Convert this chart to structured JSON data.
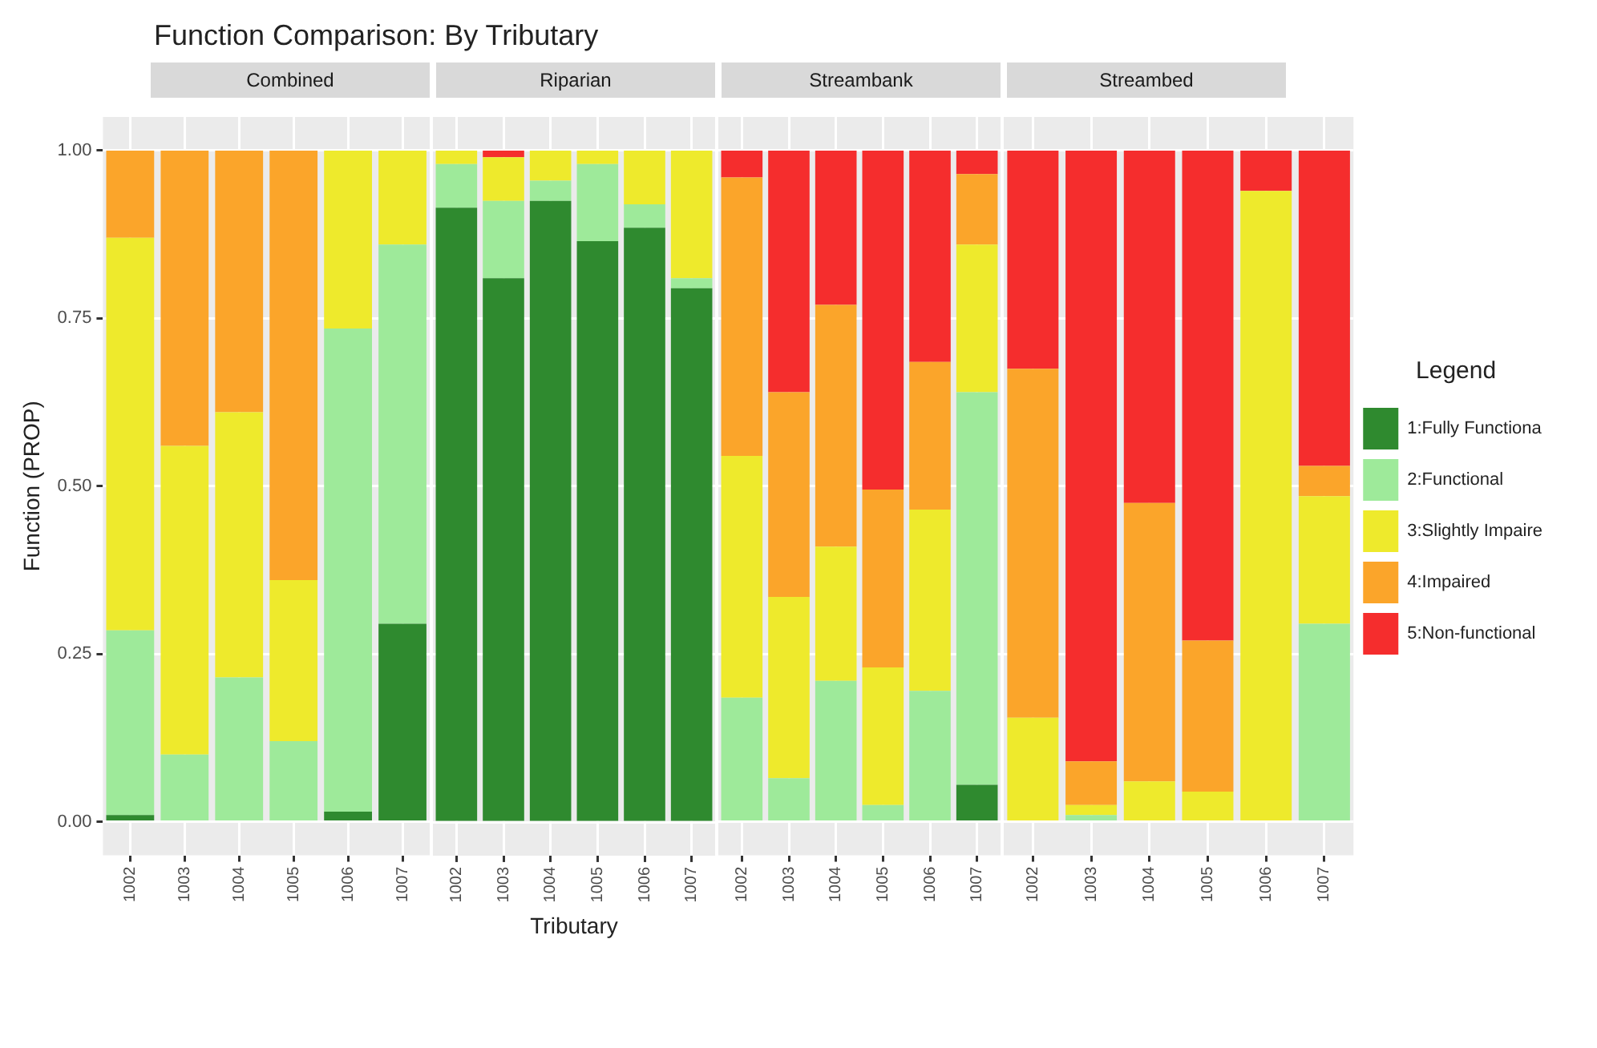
{
  "chart_data": [
    {
      "type": "bar",
      "title": "Function Comparison: By Tributary",
      "subtitle": "Combined",
      "ylabel": "Function (PROP)",
      "grid": true,
      "stacked": true,
      "ylim": [
        -0.05,
        1.05
      ],
      "yticks": [
        {
          "value": 0,
          "label": "0.00"
        },
        {
          "value": 0.25,
          "label": "0.25"
        },
        {
          "value": 0.5,
          "label": "0.50"
        },
        {
          "value": 0.75,
          "label": "0.75"
        },
        {
          "value": 1,
          "label": "1.00"
        }
      ],
      "categories": [
        "1002",
        "1003",
        "1004",
        "1005",
        "1006",
        "1007"
      ],
      "series": [
        {
          "color": "#2f8a2f",
          "values": [
            0.01,
            0,
            0,
            0,
            0.015,
            0.295
          ]
        },
        {
          "color": "#9eea9a",
          "values": [
            0.275,
            0.1,
            0.215,
            0.12,
            0.72,
            0.565
          ]
        },
        {
          "color": "#eeea2c",
          "values": [
            0.585,
            0.46,
            0.395,
            0.24,
            0.265,
            0.14
          ]
        },
        {
          "color": "#fba52a",
          "values": [
            0.13,
            0.44,
            0.39,
            0.64,
            0,
            0
          ]
        },
        {
          "color": "#f52d2d",
          "values": [
            0,
            0,
            0,
            0,
            0,
            0
          ]
        }
      ]
    },
    {
      "type": "bar",
      "subtitle": "Riparian",
      "xlabel": "Tributary",
      "grid": true,
      "stacked": true,
      "tick_labels": "x",
      "ylim": [
        -0.05,
        1.05
      ],
      "yticks": [
        {
          "value": 0,
          "label": null
        },
        {
          "value": 0.25,
          "label": null
        },
        {
          "value": 0.5,
          "label": null
        },
        {
          "value": 0.75,
          "label": null
        },
        {
          "value": 1,
          "label": null
        }
      ],
      "categories": [
        "1002",
        "1003",
        "1004",
        "1005",
        "1006",
        "1007"
      ],
      "series": [
        {
          "color": "#2f8a2f",
          "values": [
            0.915,
            0.81,
            0.925,
            0.865,
            0.885,
            0.795
          ]
        },
        {
          "color": "#9eea9a",
          "values": [
            0.065,
            0.115,
            0.03,
            0.115,
            0.035,
            0.015
          ]
        },
        {
          "color": "#eeea2c",
          "values": [
            0.02,
            0.065,
            0.045,
            0.02,
            0.08,
            0.19
          ]
        },
        {
          "color": "#fba52a",
          "values": [
            0,
            0,
            0,
            0,
            0,
            0
          ]
        },
        {
          "color": "#f52d2d",
          "values": [
            0,
            0.01,
            0,
            0,
            0,
            0
          ]
        }
      ]
    },
    {
      "type": "bar",
      "subtitle": "Streambank",
      "grid": true,
      "stacked": true,
      "tick_labels": "x",
      "ylim": [
        -0.05,
        1.05
      ],
      "yticks": [
        {
          "value": 0,
          "label": null
        },
        {
          "value": 0.25,
          "label": null
        },
        {
          "value": 0.5,
          "label": null
        },
        {
          "value": 0.75,
          "label": null
        },
        {
          "value": 1,
          "label": null
        }
      ],
      "categories": [
        "1002",
        "1003",
        "1004",
        "1005",
        "1006",
        "1007"
      ],
      "series": [
        {
          "color": "#2f8a2f",
          "values": [
            0,
            0,
            0,
            0,
            0,
            0.055
          ]
        },
        {
          "color": "#9eea9a",
          "values": [
            0.185,
            0.065,
            0.21,
            0.025,
            0.195,
            0.585
          ]
        },
        {
          "color": "#eeea2c",
          "values": [
            0.36,
            0.27,
            0.2,
            0.205,
            0.27,
            0.22
          ]
        },
        {
          "color": "#fba52a",
          "values": [
            0.415,
            0.305,
            0.36,
            0.265,
            0.22,
            0.105
          ]
        },
        {
          "color": "#f52d2d",
          "values": [
            0.04,
            0.36,
            0.23,
            0.505,
            0.315,
            0.035
          ]
        }
      ]
    },
    {
      "type": "bar",
      "subtitle": "Streambed",
      "legend_title": "Legend",
      "legend": "right",
      "grid": true,
      "stacked": true,
      "tick_labels": "x",
      "ylim": [
        -0.05,
        1.05
      ],
      "yticks": [
        {
          "value": 0,
          "label": null
        },
        {
          "value": 0.25,
          "label": null
        },
        {
          "value": 0.5,
          "label": null
        },
        {
          "value": 0.75,
          "label": null
        },
        {
          "value": 1,
          "label": null
        }
      ],
      "categories": [
        "1002",
        "1003",
        "1004",
        "1005",
        "1006",
        "1007"
      ],
      "series": [
        {
          "name": "1:Fully Functiona",
          "color": "#2f8a2f",
          "values": [
            0,
            0,
            0,
            0,
            0,
            0
          ]
        },
        {
          "name": "2:Functional",
          "color": "#9eea9a",
          "values": [
            0,
            0.01,
            0,
            0,
            0,
            0.295
          ]
        },
        {
          "name": "3:Slightly Impaire",
          "color": "#eeea2c",
          "values": [
            0.155,
            0.015,
            0.06,
            0.045,
            0.94,
            0.19
          ]
        },
        {
          "name": "4:Impaired",
          "color": "#fba52a",
          "values": [
            0.52,
            0.065,
            0.415,
            0.225,
            0,
            0.045
          ]
        },
        {
          "name": "5:Non-functional",
          "color": "#f52d2d",
          "values": [
            0.325,
            0.91,
            0.525,
            0.73,
            0.06,
            0.47
          ]
        }
      ]
    }
  ]
}
